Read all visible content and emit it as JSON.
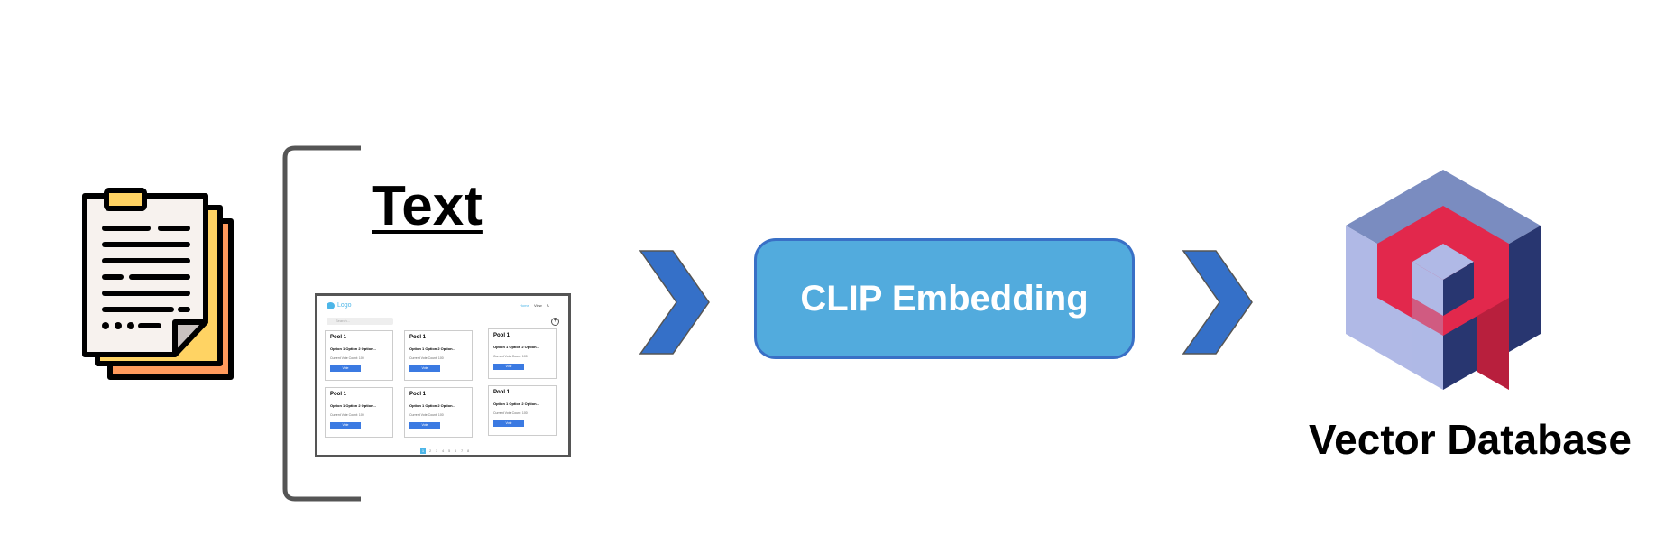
{
  "text_section": {
    "heading": "Text"
  },
  "mockup": {
    "logo": "Logo",
    "nav": [
      "Home",
      "View",
      "A"
    ],
    "search_placeholder": "Search...",
    "add": "+",
    "cards": [
      {
        "title": "Pool 1",
        "options": "Option 1   Option 2   Option...",
        "count": "Current Vote Count: 100",
        "button": "Vote"
      },
      {
        "title": "Pool 1",
        "options": "Option 1   Option 2   Option...",
        "count": "Current Vote Count: 100",
        "button": "Vote"
      },
      {
        "title": "Pool 1",
        "options": "Option 1   Option 2   Option...",
        "count": "Current Vote Count: 100",
        "button": "Vote"
      },
      {
        "title": "Pool 1",
        "options": "Option 1   Option 2   Option...",
        "count": "Current Vote Count: 100",
        "button": "Vote"
      },
      {
        "title": "Pool 1",
        "options": "Option 1   Option 2   Option...",
        "count": "Current Vote Count: 100",
        "button": "Vote"
      },
      {
        "title": "Pool 1",
        "options": "Option 1   Option 2   Option...",
        "count": "Current Vote Count: 100",
        "button": "Vote"
      }
    ],
    "pagination": [
      "1",
      "2",
      "3",
      "4",
      "5",
      "6",
      "7",
      "8"
    ]
  },
  "embedding": {
    "label": "CLIP Embedding"
  },
  "vector_db": {
    "label": "Vector Database"
  },
  "colors": {
    "arrow": "#3570c8",
    "embedding_fill": "#52abdd",
    "embedding_border": "#3970c6",
    "cube_top": "#7a8cc0",
    "cube_left": "#b0b9e6",
    "cube_right": "#283670",
    "cube_accent": "#e2284c"
  },
  "icons": [
    "clipboard-document-icon",
    "chevron-right-icon",
    "chevron-right-icon",
    "qdrant-cube-logo-icon"
  ]
}
